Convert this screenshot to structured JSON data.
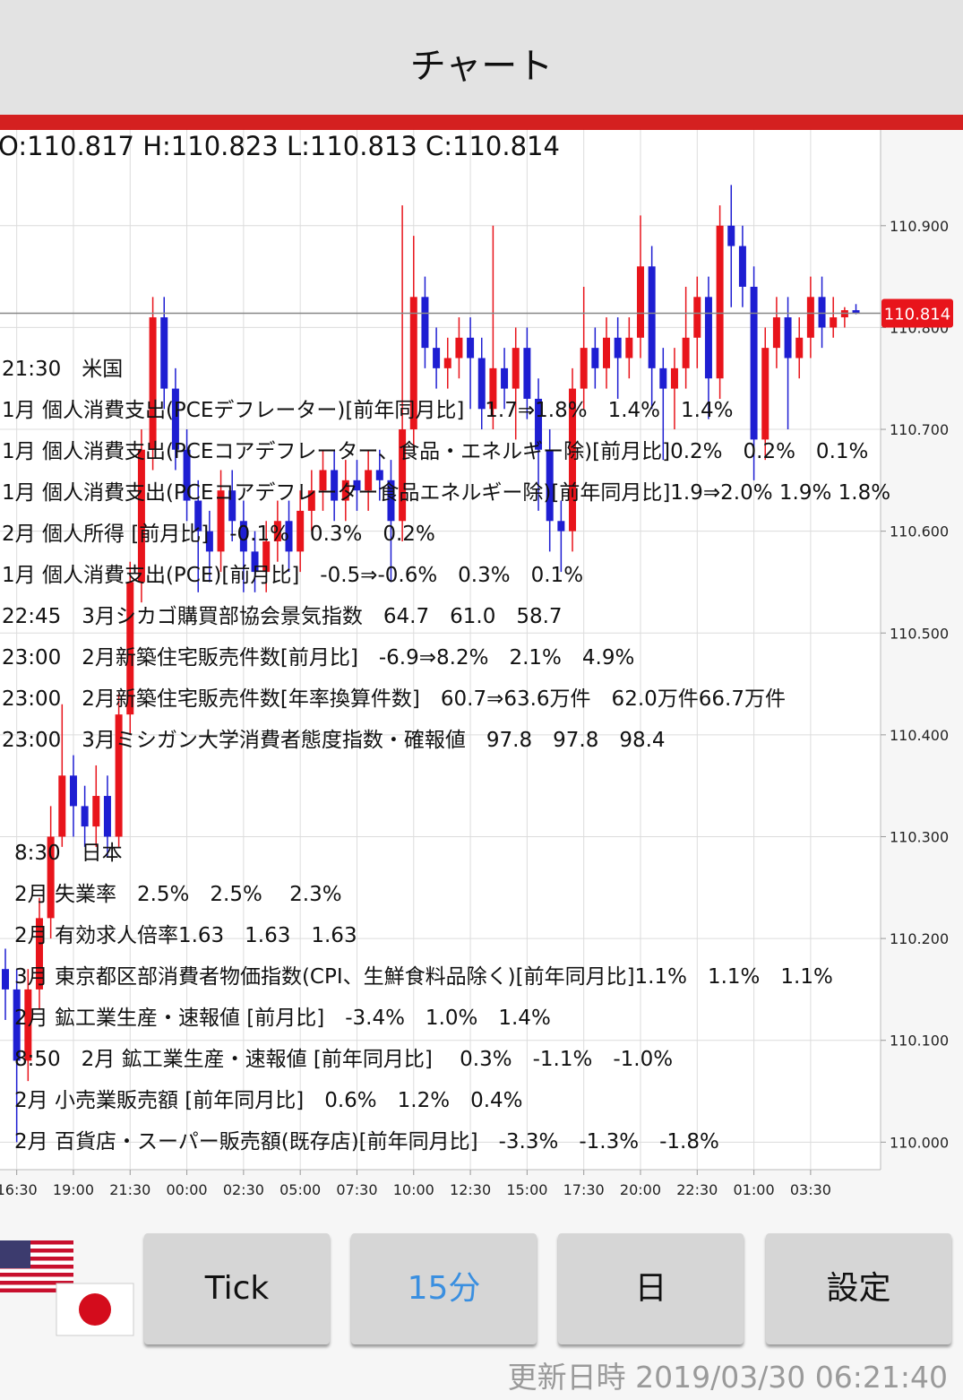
{
  "header": {
    "title": "チャート"
  },
  "chart_data": {
    "type": "candlestick",
    "ohlc_label": "O:110.817 H:110.823 L:110.813 C:110.814",
    "open": [
      110.17,
      110.15,
      110.08,
      110.15,
      110.22,
      110.3,
      110.36,
      110.33,
      110.31,
      110.34,
      110.3,
      110.42,
      110.55,
      110.68,
      110.81,
      110.74,
      110.68,
      110.63,
      110.6,
      110.58,
      110.64,
      110.61,
      110.58,
      110.56,
      110.59,
      110.61,
      110.58,
      110.62,
      110.64,
      110.66,
      110.63,
      110.65,
      110.64,
      110.66,
      110.65,
      110.61,
      110.7,
      110.83,
      110.78,
      110.76,
      110.77,
      110.79,
      110.77,
      110.72,
      110.76,
      110.74,
      110.78,
      110.73,
      110.68,
      110.61,
      110.6,
      110.74,
      110.78,
      110.76,
      110.79,
      110.77,
      110.79,
      110.86,
      110.76,
      110.74,
      110.76,
      110.79,
      110.83,
      110.75,
      110.9,
      110.88,
      110.84,
      110.69,
      110.78,
      110.81,
      110.77,
      110.79,
      110.83,
      110.8,
      110.81,
      110.817
    ],
    "high": [
      110.19,
      110.17,
      110.17,
      110.24,
      110.33,
      110.43,
      110.38,
      110.35,
      110.37,
      110.36,
      110.44,
      110.57,
      110.7,
      110.83,
      110.83,
      110.76,
      110.7,
      110.65,
      110.62,
      110.66,
      110.66,
      110.63,
      110.6,
      110.61,
      110.63,
      110.63,
      110.64,
      110.66,
      110.68,
      110.68,
      110.67,
      110.67,
      110.68,
      110.68,
      110.67,
      110.92,
      110.89,
      110.85,
      110.8,
      110.79,
      110.81,
      110.81,
      110.79,
      110.9,
      110.78,
      110.8,
      110.8,
      110.75,
      110.7,
      110.63,
      110.76,
      110.84,
      110.8,
      110.81,
      110.81,
      110.81,
      110.91,
      110.88,
      110.78,
      110.78,
      110.84,
      110.85,
      110.85,
      110.92,
      110.94,
      110.9,
      110.86,
      110.8,
      110.83,
      110.83,
      110.81,
      110.85,
      110.85,
      110.83,
      110.82,
      110.823
    ],
    "low": [
      110.12,
      110.0,
      110.06,
      110.13,
      110.2,
      110.29,
      110.3,
      110.29,
      110.29,
      110.28,
      110.29,
      110.4,
      110.53,
      110.66,
      110.72,
      110.66,
      110.61,
      110.54,
      110.55,
      110.56,
      110.59,
      110.54,
      110.54,
      110.54,
      110.57,
      110.56,
      110.56,
      110.6,
      110.62,
      110.61,
      110.61,
      110.62,
      110.62,
      110.63,
      110.55,
      110.59,
      110.68,
      110.76,
      110.74,
      110.74,
      110.75,
      110.72,
      110.7,
      110.7,
      110.72,
      110.69,
      110.71,
      110.62,
      110.58,
      110.56,
      110.58,
      110.72,
      110.74,
      110.74,
      110.73,
      110.75,
      110.77,
      110.72,
      110.67,
      110.7,
      110.74,
      110.76,
      110.71,
      110.73,
      110.82,
      110.82,
      110.65,
      110.67,
      110.76,
      110.7,
      110.75,
      110.77,
      110.78,
      110.79,
      110.8,
      110.813
    ],
    "close": [
      110.15,
      110.08,
      110.15,
      110.22,
      110.3,
      110.36,
      110.33,
      110.31,
      110.34,
      110.3,
      110.42,
      110.55,
      110.68,
      110.81,
      110.74,
      110.68,
      110.63,
      110.6,
      110.58,
      110.64,
      110.61,
      110.58,
      110.56,
      110.59,
      110.61,
      110.58,
      110.62,
      110.64,
      110.66,
      110.63,
      110.65,
      110.64,
      110.66,
      110.65,
      110.61,
      110.7,
      110.83,
      110.78,
      110.76,
      110.77,
      110.79,
      110.77,
      110.72,
      110.76,
      110.74,
      110.78,
      110.73,
      110.68,
      110.61,
      110.6,
      110.74,
      110.78,
      110.76,
      110.79,
      110.77,
      110.79,
      110.86,
      110.76,
      110.74,
      110.76,
      110.79,
      110.83,
      110.75,
      110.9,
      110.88,
      110.84,
      110.69,
      110.78,
      110.81,
      110.77,
      110.79,
      110.83,
      110.8,
      110.81,
      110.817,
      110.814
    ],
    "up_color": "#e8141b",
    "down_color": "#1e1ed2",
    "xlim": [
      -0.474,
      77.17
    ],
    "ylim": [
      109.973,
      110.994
    ],
    "xticks": [
      {
        "value": 1,
        "label": "16:30"
      },
      {
        "value": 6,
        "label": "19:00"
      },
      {
        "value": 11,
        "label": "21:30"
      },
      {
        "value": 16,
        "label": "00:00"
      },
      {
        "value": 21,
        "label": "02:30"
      },
      {
        "value": 26,
        "label": "05:00"
      },
      {
        "value": 31,
        "label": "07:30"
      },
      {
        "value": 36,
        "label": "10:00"
      },
      {
        "value": 41,
        "label": "12:30"
      },
      {
        "value": 46,
        "label": "15:00"
      },
      {
        "value": 51,
        "label": "17:30"
      },
      {
        "value": 56,
        "label": "20:00"
      },
      {
        "value": 61,
        "label": "22:30"
      },
      {
        "value": 66,
        "label": "01:00"
      },
      {
        "value": 71,
        "label": "03:30"
      }
    ],
    "yticks": [
      {
        "value": 110,
        "label": "110.000"
      },
      {
        "value": 110.1,
        "label": "110.100"
      },
      {
        "value": 110.2,
        "label": "110.200"
      },
      {
        "value": 110.3,
        "label": "110.300"
      },
      {
        "value": 110.4,
        "label": "110.400"
      },
      {
        "value": 110.5,
        "label": "110.500"
      },
      {
        "value": 110.6,
        "label": "110.600"
      },
      {
        "value": 110.7,
        "label": "110.700"
      },
      {
        "value": 110.8,
        "label": "110.800"
      },
      {
        "value": 110.9,
        "label": "110.900"
      }
    ],
    "last_price": {
      "value": 110.814,
      "label": "110.814"
    },
    "grid": true
  },
  "calendar": [
    {
      "lines": [
        "21:30　米国",
        "1月 個人消費支出(PCEデフレーター)[前年同月比]　1.7⇒1.8%　1.4%　1.4%",
        "1月 個人消費支出(PCEコアデフレーター、食品・エネルギー除)[前月比]0.2%　0.2%　0.1%",
        "1月 個人消費支出(PCEコアデフレーター食品エネルギー除)[前年同月比]1.9⇒2.0% 1.9% 1.8%",
        "2月 個人所得 [前月比]　-0.1%　0.3%　0.2%",
        "1月 個人消費支出(PCE)[前月比]　-0.5⇒-0.6%　0.3%　0.1%",
        "22:45　3月シカゴ購買部協会景気指数　64.7　61.0　58.7",
        "23:00　2月新築住宅販売件数[前月比]　-6.9⇒8.2%　2.1%　4.9%",
        "23:00　2月新築住宅販売件数[年率換算件数]　60.7⇒63.6万件　62.0万件66.7万件",
        "23:00　3月ミシガン大学消費者態度指数・確報値　97.8　97.8　98.4"
      ]
    },
    {
      "lines": [
        "8:30　日本",
        "2月 失業率　2.5%　2.5%　 2.3%",
        "2月 有効求人倍率1.63　1.63　1.63",
        "3月 東京都区部消費者物価指数(CPI、生鮮食料品除く)[前年同月比]1.1%　1.1%　1.1%",
        "2月 鉱工業生産・速報値 [前月比]　-3.4%　1.0%　1.4%",
        "8:50　2月 鉱工業生産・速報値 [前年同月比]　 0.3%　-1.1%　-1.0%",
        "2月 小売業販売額 [前年同月比]　0.6%　1.2%　0.4%",
        "2月 百貨店・スーパー販売額(既存店)[前年同月比]　-3.3%　-1.3%　-1.8%"
      ]
    }
  ],
  "buttons": [
    {
      "label": "Tick"
    },
    {
      "label": "15分",
      "selected": true
    },
    {
      "label": "日"
    },
    {
      "label": "設定"
    }
  ],
  "footer": "更新日時 2019/03/30 06:21:40"
}
